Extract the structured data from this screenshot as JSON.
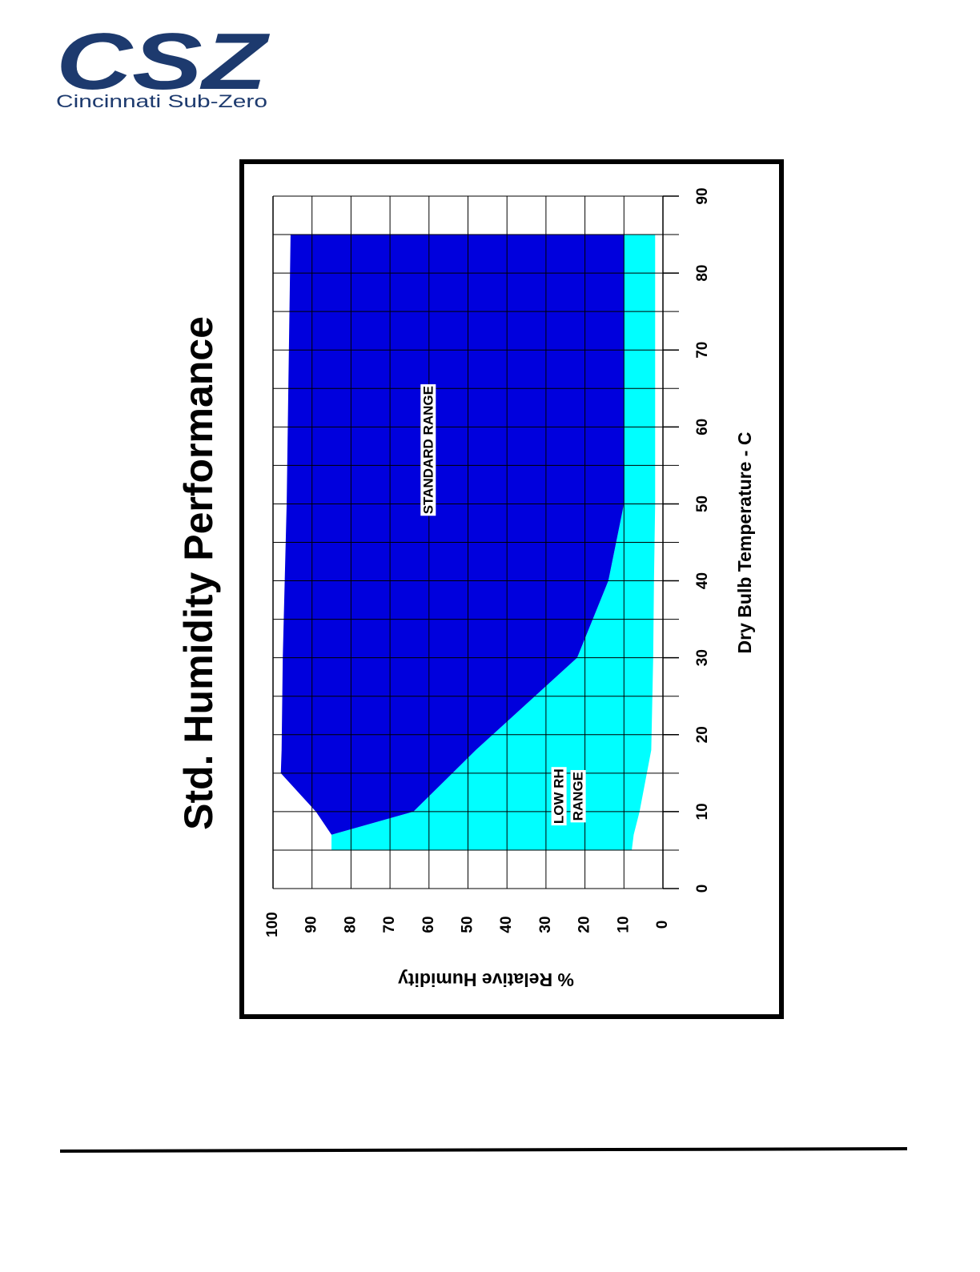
{
  "logo": {
    "mark": "CSZ",
    "name": "Cincinnati Sub-Zero"
  },
  "chart_data": {
    "type": "range-area",
    "title": "Std. Humidity Performance",
    "x_label": "Dry Bulb Temperature - C",
    "y_label": "% Relative Humidity",
    "xlim": [
      0,
      90
    ],
    "xticks": [
      0,
      10,
      20,
      30,
      40,
      50,
      60,
      70,
      80,
      90
    ],
    "x_grid": [
      0,
      5,
      10,
      15,
      20,
      25,
      30,
      35,
      40,
      45,
      50,
      55,
      60,
      65,
      70,
      75,
      80,
      85,
      90
    ],
    "ylim": [
      0,
      100
    ],
    "yticks": [
      0,
      10,
      20,
      30,
      40,
      50,
      60,
      70,
      80,
      90,
      100
    ],
    "grid": true,
    "series": [
      {
        "name": "LOW RH RANGE",
        "color": "#00ffff",
        "x": [
          5,
          7,
          10,
          18,
          30,
          40,
          50,
          85
        ],
        "upper": [
          85,
          85,
          64,
          48,
          22,
          14,
          10,
          10
        ],
        "lower": [
          8,
          7.5,
          6,
          3,
          2.5,
          2.3,
          2,
          2
        ]
      },
      {
        "name": "STANDARD RANGE",
        "color": "#0000dd",
        "x": [
          7,
          10,
          15,
          18,
          30,
          40,
          50,
          85
        ],
        "upper": [
          85,
          89,
          98,
          97.8,
          97.5,
          97,
          96.5,
          95.5
        ],
        "lower": [
          85,
          64,
          54,
          48,
          22,
          14,
          10,
          10
        ]
      }
    ],
    "annotations": [
      {
        "lines": [
          "STANDARD RANGE"
        ],
        "x": 57,
        "y": 60
      },
      {
        "lines": [
          "LOW RH",
          "RANGE"
        ],
        "x": 12,
        "y": 24
      }
    ]
  }
}
